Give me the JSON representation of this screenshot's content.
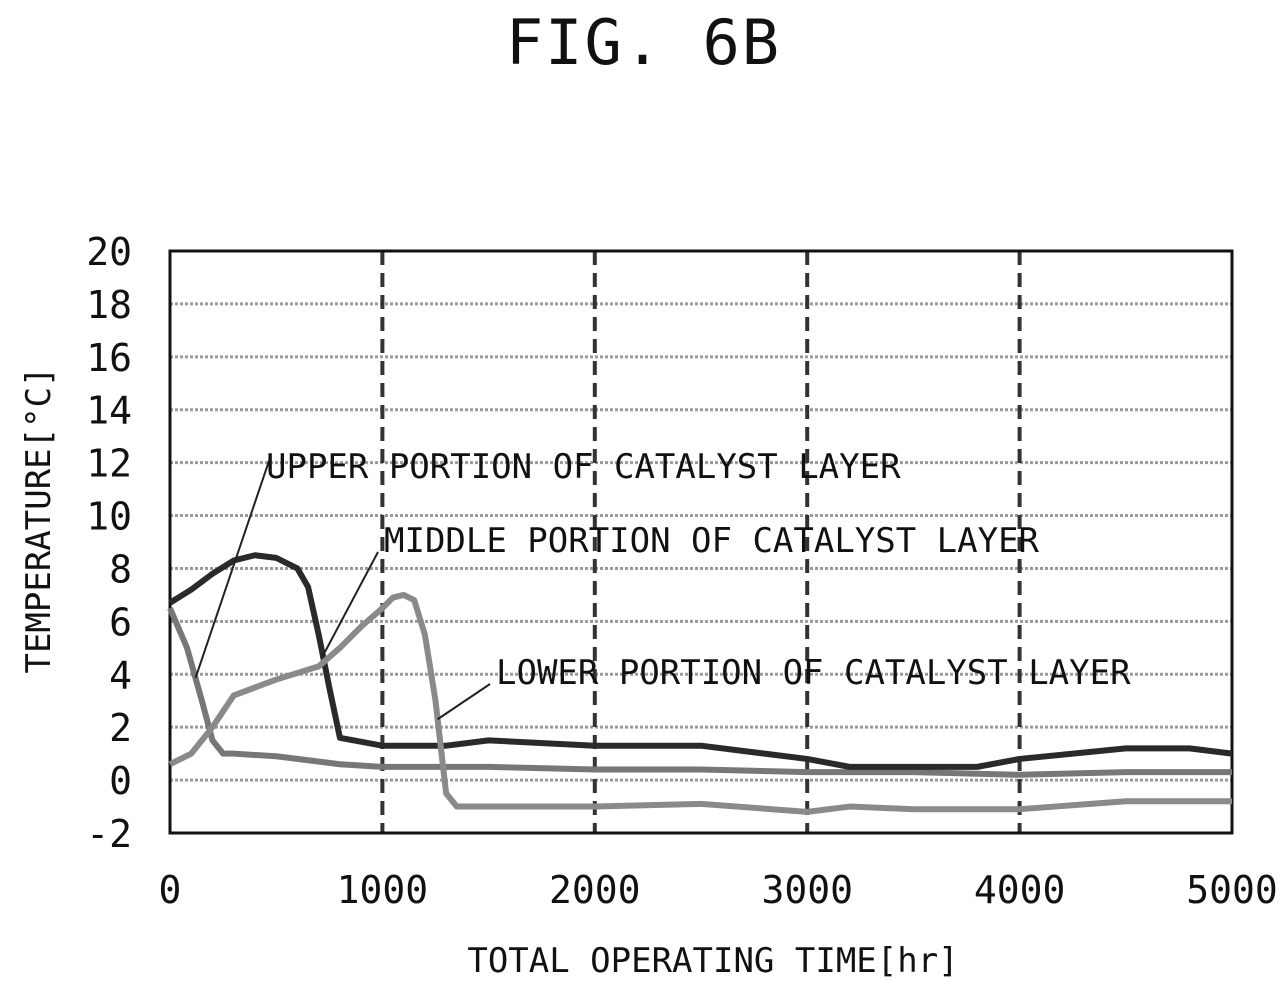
{
  "figure": {
    "title": "FIG. 6B"
  },
  "chart_data": {
    "type": "line",
    "title": "FIG. 6B",
    "xlabel": "TOTAL OPERATING TIME[hr]",
    "ylabel": "TEMPERATURE[°C]",
    "xlim": [
      0,
      5000
    ],
    "ylim": [
      -2,
      20
    ],
    "x_ticks": [
      "0",
      "1000",
      "2000",
      "3000",
      "4000",
      "5000"
    ],
    "y_ticks": [
      "-2",
      "0",
      "2",
      "4",
      "6",
      "8",
      "10",
      "12",
      "14",
      "16",
      "18",
      "20"
    ],
    "grid": true,
    "annotations": [
      {
        "text": "UPPER PORTION OF CATALYST LAYER",
        "series": 0
      },
      {
        "text": "MIDDLE PORTION OF CATALYST LAYER",
        "series": 1
      },
      {
        "text": "LOWER PORTION OF CATALYST LAYER",
        "series": 2
      }
    ],
    "series": [
      {
        "name": "UPPER PORTION OF CATALYST LAYER",
        "color": "#777777",
        "x": [
          0,
          80,
          150,
          200,
          250,
          300,
          500,
          800,
          1000,
          1500,
          2000,
          2500,
          3000,
          3500,
          4000,
          4500,
          5000
        ],
        "y": [
          6.5,
          5.0,
          3.0,
          1.5,
          1.0,
          1.0,
          0.9,
          0.6,
          0.5,
          0.5,
          0.4,
          0.4,
          0.3,
          0.3,
          0.2,
          0.3,
          0.3
        ]
      },
      {
        "name": "MIDDLE PORTION OF CATALYST LAYER",
        "color": "#2a2a2a",
        "x": [
          0,
          100,
          200,
          300,
          400,
          500,
          600,
          650,
          700,
          750,
          800,
          1000,
          1300,
          1500,
          2000,
          2500,
          3000,
          3200,
          3500,
          3800,
          4000,
          4500,
          4800,
          5000
        ],
        "y": [
          6.7,
          7.2,
          7.8,
          8.3,
          8.5,
          8.4,
          8.0,
          7.3,
          5.5,
          3.5,
          1.6,
          1.3,
          1.3,
          1.5,
          1.3,
          1.3,
          0.8,
          0.5,
          0.5,
          0.5,
          0.8,
          1.2,
          1.2,
          1.0
        ]
      },
      {
        "name": "LOWER PORTION OF CATALYST LAYER",
        "color": "#8a8a8a",
        "x": [
          0,
          100,
          200,
          300,
          500,
          700,
          800,
          900,
          1000,
          1050,
          1100,
          1150,
          1200,
          1250,
          1300,
          1350,
          1500,
          2000,
          2500,
          3000,
          3200,
          3500,
          4000,
          4500,
          5000
        ],
        "y": [
          0.6,
          1.0,
          2.0,
          3.2,
          3.8,
          4.3,
          5.0,
          5.8,
          6.5,
          6.9,
          7.0,
          6.8,
          5.5,
          3.0,
          -0.5,
          -1.0,
          -1.0,
          -1.0,
          -0.9,
          -1.2,
          -1.0,
          -1.1,
          -1.1,
          -0.8,
          -0.8
        ]
      }
    ]
  }
}
